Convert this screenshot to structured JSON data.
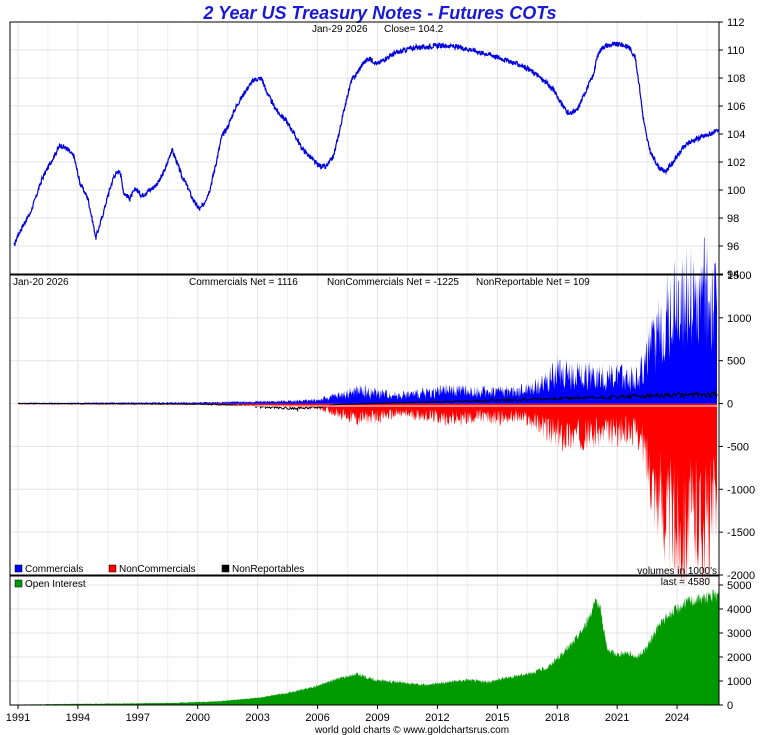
{
  "title": "2 Year US Treasury Notes - Futures COTs",
  "footer": "world gold charts © www.goldchartsrus.com",
  "colors": {
    "title": "#1a1ad6",
    "price_line": "#0000dd",
    "commercials": "#0000ff",
    "noncommercials": "#ff0000",
    "nonreportables": "#000000",
    "open_interest": "#009900"
  },
  "chart_data": [
    {
      "type": "line",
      "panel": "price",
      "info": {
        "date": "Jan-29  2026",
        "close_label": "Close= 104.2"
      },
      "ylim": [
        94,
        112
      ],
      "yticks": [
        94,
        96,
        98,
        100,
        102,
        104,
        106,
        108,
        110,
        112
      ],
      "grid": true,
      "series": [
        {
          "x": [
            1990.8,
            1991.0,
            1991.3,
            1991.6,
            1991.9,
            1992.2,
            1992.5,
            1992.8,
            1993.1,
            1993.4,
            1993.8,
            1994.1,
            1994.5,
            1994.9,
            1995.2,
            1995.5,
            1995.8,
            1996.1,
            1996.3,
            1996.6,
            1996.9,
            1997.2,
            1997.5,
            1997.8,
            1998.1,
            1998.4,
            1998.7,
            1998.9,
            1999.2,
            1999.5,
            1999.8,
            2000.1,
            2000.3,
            2000.6,
            2000.9,
            2001.2,
            2001.5,
            2001.8,
            2002.1,
            2002.4,
            2002.7,
            2002.9,
            2003.2,
            2003.4,
            2003.7,
            2004.0,
            2004.4,
            2004.8,
            2005.2,
            2005.6,
            2006.0,
            2006.4,
            2006.8,
            2007.1,
            2007.4,
            2007.7,
            2008.0,
            2008.3,
            2008.6,
            2009.0,
            2009.4,
            2009.8,
            2010.2,
            2010.6,
            2011.0,
            2011.4,
            2011.8,
            2012.2,
            2012.6,
            2013.0,
            2013.4,
            2013.8,
            2014.2,
            2014.6,
            2015.0,
            2015.4,
            2015.8,
            2016.2,
            2016.6,
            2017.0,
            2017.4,
            2017.8,
            2018.2,
            2018.6,
            2019.0,
            2019.4,
            2019.8,
            2020.0,
            2020.2,
            2020.4,
            2020.8,
            2021.2,
            2021.6,
            2021.9,
            2022.1,
            2022.3,
            2022.5,
            2022.7,
            2022.9,
            2023.1,
            2023.4,
            2023.7,
            2024.0,
            2024.3,
            2024.6,
            2024.9,
            2025.2,
            2025.5,
            2025.8,
            2026.08
          ],
          "y": [
            96.0,
            96.8,
            97.6,
            98.3,
            99.5,
            100.8,
            101.6,
            102.4,
            103.2,
            103.0,
            102.4,
            100.5,
            99.4,
            96.6,
            98.0,
            99.6,
            101.0,
            101.4,
            99.8,
            99.4,
            100.1,
            99.6,
            99.9,
            100.2,
            100.7,
            101.6,
            102.9,
            102.2,
            101.0,
            100.2,
            99.2,
            98.6,
            99.0,
            100.0,
            101.8,
            103.8,
            104.5,
            105.6,
            106.4,
            107.1,
            107.7,
            107.9,
            108.0,
            107.2,
            106.3,
            105.6,
            105.0,
            104.1,
            103.0,
            102.4,
            101.8,
            101.6,
            102.4,
            104.2,
            106.2,
            107.8,
            108.4,
            109.1,
            109.4,
            109.0,
            109.4,
            109.7,
            109.9,
            110.1,
            110.2,
            110.2,
            110.3,
            110.3,
            110.3,
            110.2,
            110.1,
            110.0,
            109.8,
            109.7,
            109.5,
            109.3,
            109.1,
            108.9,
            108.6,
            108.2,
            107.7,
            107.2,
            106.2,
            105.4,
            105.7,
            107.0,
            108.2,
            109.5,
            110.1,
            110.3,
            110.4,
            110.4,
            110.2,
            109.5,
            107.6,
            105.2,
            103.6,
            102.6,
            102.1,
            101.6,
            101.3,
            101.8,
            102.4,
            103.0,
            103.4,
            103.6,
            103.8,
            103.9,
            104.1,
            104.2
          ]
        }
      ]
    },
    {
      "type": "area",
      "panel": "cot",
      "info": {
        "date": "Jan-20  2026",
        "commercials_label": "Commercials Net = 1116",
        "noncommercials_label": "NonCommercials Net = -1225",
        "nonreportable_label": "NonReportable Net = 109"
      },
      "ylim": [
        -2000,
        1500
      ],
      "yticks": [
        -2000,
        -1500,
        -1000,
        -500,
        0,
        500,
        1000,
        1500
      ],
      "grid": true,
      "legend": [
        "Commercials",
        "NonCommercials",
        "NonReportables"
      ],
      "legend_placement": "bottom-left",
      "units_note": "volumes in 1000's",
      "series": [
        {
          "name": "Commercials",
          "x": [
            1991,
            1996,
            2000,
            2002,
            2004,
            2006,
            2007,
            2008,
            2009,
            2010,
            2011,
            2012,
            2013,
            2014,
            2015,
            2016,
            2017,
            2018,
            2019,
            2020,
            2021,
            2022,
            2022.5,
            2023,
            2023.5,
            2024,
            2024.5,
            2025,
            2025.5,
            2026
          ],
          "y": [
            8,
            10,
            12,
            20,
            25,
            40,
            90,
            150,
            120,
            100,
            110,
            140,
            160,
            130,
            150,
            140,
            200,
            350,
            330,
            320,
            310,
            300,
            520,
            800,
            1050,
            1200,
            1250,
            1150,
            1300,
            1116
          ]
        },
        {
          "name": "NonCommercials",
          "x": [
            1991,
            1996,
            2000,
            2002,
            2004,
            2006,
            2007,
            2008,
            2009,
            2010,
            2011,
            2012,
            2013,
            2014,
            2015,
            2016,
            2017,
            2018,
            2019,
            2020,
            2021,
            2022,
            2022.5,
            2023,
            2023.5,
            2024,
            2024.5,
            2025,
            2025.5,
            2026
          ],
          "y": [
            -8,
            -10,
            -12,
            -20,
            -30,
            -50,
            -110,
            -180,
            -150,
            -120,
            -130,
            -160,
            -180,
            -150,
            -170,
            -150,
            -220,
            -380,
            -360,
            -350,
            -330,
            -320,
            -650,
            -1050,
            -1300,
            -1450,
            -1400,
            -1300,
            -1420,
            -1225
          ]
        },
        {
          "name": "NonReportables",
          "x": [
            1991,
            2000,
            2002,
            2004,
            2005,
            2006,
            2007,
            2026
          ],
          "y": [
            0,
            -5,
            -20,
            -50,
            -60,
            -40,
            -10,
            109
          ]
        }
      ]
    },
    {
      "type": "area",
      "panel": "open_interest",
      "ylim": [
        0,
        5000
      ],
      "yticks": [
        0,
        1000,
        2000,
        3000,
        4000,
        5000
      ],
      "grid": true,
      "legend": [
        "Open Interest"
      ],
      "legend_placement": "top-left",
      "last_label": "last = 4580",
      "xlim": [
        1990.6,
        2026.1
      ],
      "xticks": [
        1991,
        1994,
        1997,
        2000,
        2003,
        2006,
        2009,
        2012,
        2015,
        2018,
        2021,
        2024
      ],
      "series": [
        {
          "name": "Open Interest",
          "x": [
            1990.8,
            1993,
            1996,
            1999,
            2001,
            2003,
            2004.5,
            2006,
            2007,
            2008,
            2008.8,
            2009.5,
            2010.5,
            2011.5,
            2012.5,
            2013.5,
            2014.5,
            2015.5,
            2016.5,
            2017.5,
            2018.2,
            2018.8,
            2019.4,
            2019.8,
            2020.1,
            2020.5,
            2021,
            2021.5,
            2022,
            2022.5,
            2023,
            2023.5,
            2024,
            2024.5,
            2025,
            2025.5,
            2026.08
          ],
          "y": [
            10,
            40,
            60,
            90,
            150,
            300,
            500,
            800,
            1100,
            1300,
            1050,
            1000,
            900,
            850,
            950,
            1050,
            950,
            1150,
            1300,
            1550,
            2100,
            2600,
            3300,
            4100,
            4300,
            2300,
            2100,
            2200,
            2000,
            2400,
            3200,
            3700,
            4000,
            4300,
            4400,
            4500,
            4580
          ]
        }
      ]
    }
  ]
}
